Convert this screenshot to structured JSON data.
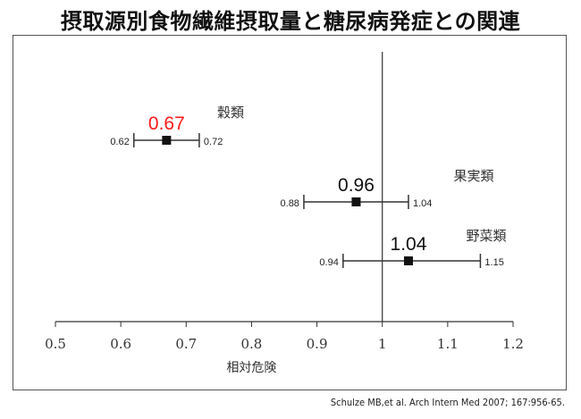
{
  "title": "摂取源別食物繊維摂取量と糖尿病発症との関連",
  "citation": "Schulze MB,et al. Arch Intern Med 2007; 167:956-65.",
  "colors": {
    "highlight": "#ff1a1a",
    "default_value": "#111111",
    "line": "#333333",
    "marker": "#111111"
  },
  "chart_data": {
    "type": "forest",
    "xlabel": "相対危険",
    "xlim": [
      0.5,
      1.2
    ],
    "xticks": [
      0.5,
      0.6,
      0.7,
      0.8,
      0.9,
      1.0,
      1.1,
      1.2
    ],
    "xtick_labels": [
      "0.5",
      "0.6",
      "0.7",
      "0.8",
      "0.9",
      "1",
      "1.1",
      "1.2"
    ],
    "reference_line": 1.0,
    "grid": false,
    "rows": [
      {
        "category": "穀類",
        "value": 0.67,
        "value_label": "0.67",
        "lower": 0.62,
        "lower_label": "0.62",
        "upper": 0.72,
        "upper_label": "0.72",
        "highlight": true
      },
      {
        "category": "果実類",
        "value": 0.96,
        "value_label": "0.96",
        "lower": 0.88,
        "lower_label": "0.88",
        "upper": 1.04,
        "upper_label": "1.04",
        "highlight": false
      },
      {
        "category": "野菜類",
        "value": 1.04,
        "value_label": "1.04",
        "lower": 0.94,
        "lower_label": "0.94",
        "upper": 1.15,
        "upper_label": "1.15",
        "highlight": false
      }
    ]
  }
}
